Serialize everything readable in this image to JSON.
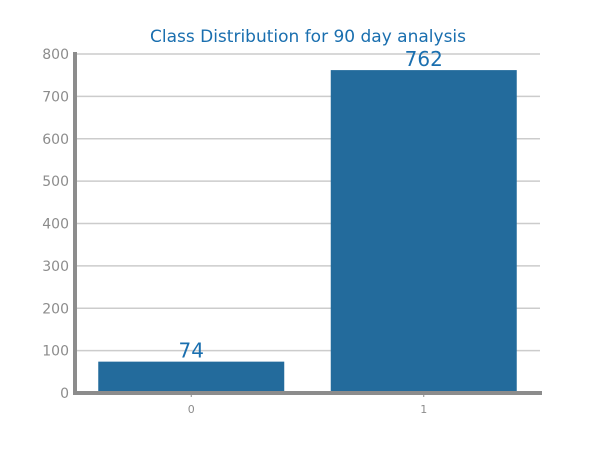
{
  "chart_data": {
    "type": "bar",
    "title": "Class Distribution for 90 day analysis",
    "xlabel": "",
    "ylabel": "",
    "categories": [
      "0",
      "1"
    ],
    "values": [
      74,
      762
    ],
    "data_labels": [
      "74",
      "762"
    ],
    "ylim": [
      0,
      800
    ],
    "yticks": [
      0,
      100,
      200,
      300,
      400,
      500,
      600,
      700,
      800
    ],
    "grid": true,
    "legend": "none",
    "colors": {
      "bar": "#236b9c",
      "title": "#1a6faf",
      "data_label": "#1a6faf",
      "tick_label": "#8c8c8c",
      "axis": "#8c8c8c",
      "grid": "#cccccc"
    }
  }
}
